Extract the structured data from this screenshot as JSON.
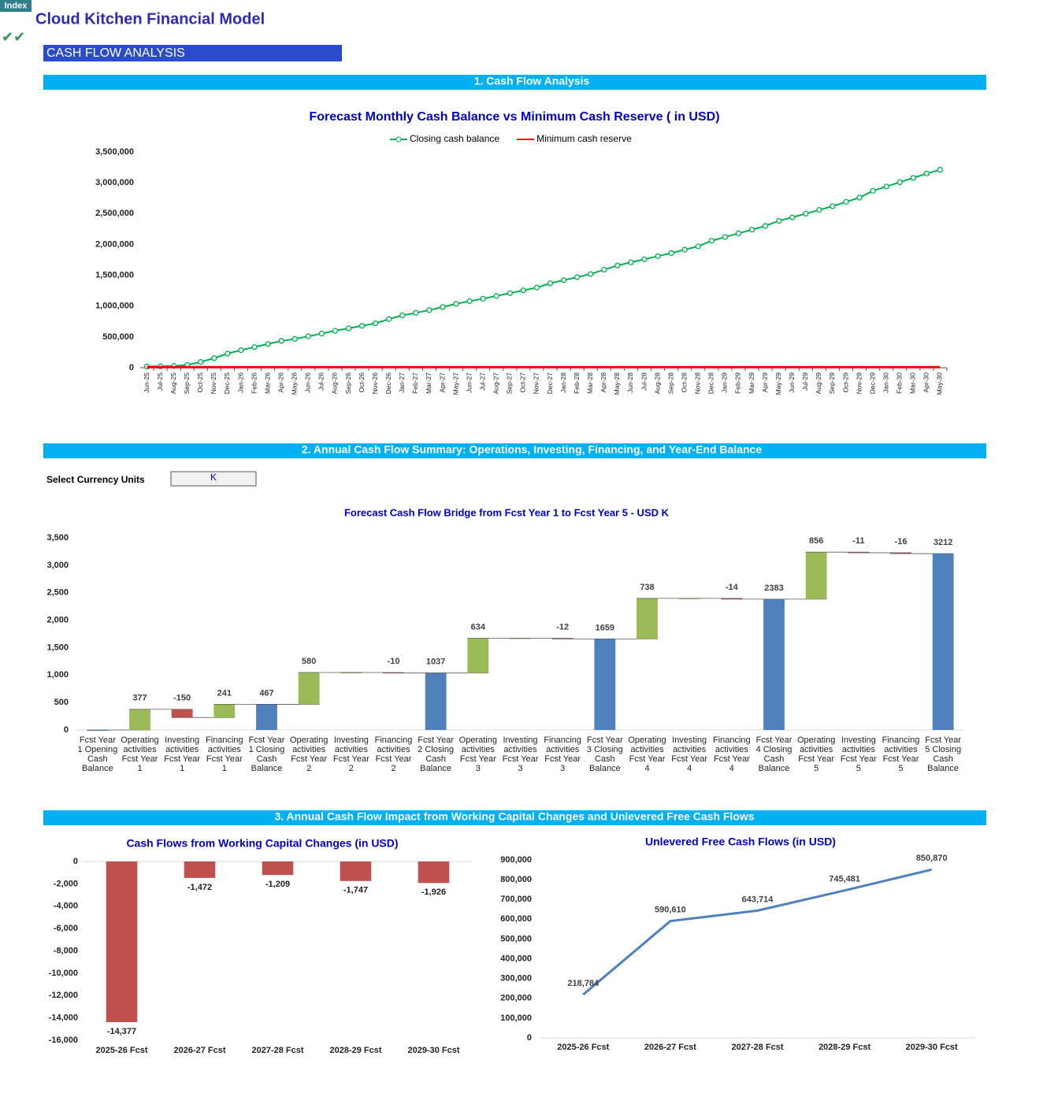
{
  "header": {
    "tag": "Index",
    "title": "Cloud Kitchen Financial Model",
    "section": "CASH FLOW ANALYSIS"
  },
  "section_headings": [
    "1. Cash Flow Analysis",
    "2. Annual Cash Flow Summary: Operations, Investing, Financing, and Year-End Balance",
    "3. Annual Cash Flow Impact from Working Capital Changes and Unlevered Free Cash Flows"
  ],
  "currency_selector": {
    "label": "Select Currency Units",
    "value": "K"
  },
  "chart_data": [
    {
      "type": "line",
      "title": "Forecast Monthly Cash Balance vs Minimum Cash Reserve ( in USD)",
      "categories": [
        "Jun-25",
        "Jul-25",
        "Aug-25",
        "Sep-25",
        "Oct-25",
        "Nov-25",
        "Dec-25",
        "Jan-26",
        "Feb-26",
        "Mar-26",
        "Apr-26",
        "May-26",
        "Jun-26",
        "Jul-26",
        "Aug-26",
        "Sep-26",
        "Oct-26",
        "Nov-26",
        "Dec-26",
        "Jan-27",
        "Feb-27",
        "Mar-27",
        "Apr-27",
        "May-27",
        "Jun-27",
        "Jul-27",
        "Aug-27",
        "Sep-27",
        "Oct-27",
        "Nov-27",
        "Dec-27",
        "Jan-28",
        "Feb-28",
        "Mar-28",
        "Apr-28",
        "May-28",
        "Jun-28",
        "Jul-28",
        "Aug-28",
        "Sep-28",
        "Oct-28",
        "Nov-28",
        "Dec-28",
        "Jan-29",
        "Feb-29",
        "Mar-29",
        "Apr-29",
        "May-29",
        "Jun-29",
        "Jul-29",
        "Aug-29",
        "Sep-29",
        "Oct-29",
        "Nov-29",
        "Dec-29",
        "Jan-30",
        "Feb-30",
        "Mar-30",
        "Apr-30",
        "May-30"
      ],
      "series": [
        {
          "name": "Closing cash balance",
          "color": "#00b050",
          "marker": "circle",
          "values": [
            20000,
            22000,
            28000,
            45000,
            95000,
            155000,
            230000,
            285000,
            335000,
            385000,
            435000,
            467000,
            510000,
            555000,
            600000,
            640000,
            680000,
            720000,
            790000,
            850000,
            890000,
            935000,
            985000,
            1037000,
            1080000,
            1120000,
            1165000,
            1210000,
            1255000,
            1300000,
            1370000,
            1420000,
            1470000,
            1520000,
            1590000,
            1659000,
            1710000,
            1760000,
            1810000,
            1860000,
            1915000,
            1970000,
            2060000,
            2120000,
            2180000,
            2240000,
            2300000,
            2383000,
            2440000,
            2500000,
            2560000,
            2620000,
            2690000,
            2760000,
            2870000,
            2940000,
            3010000,
            3080000,
            3150000,
            3212000
          ]
        },
        {
          "name": "Minimum cash reserve",
          "color": "#ff0000",
          "values": [
            10000,
            10000,
            10000,
            10000,
            10000,
            10000,
            10000,
            10000,
            10000,
            10000,
            10000,
            10000,
            10000,
            10000,
            10000,
            10000,
            10000,
            10000,
            10000,
            10000,
            10000,
            10000,
            10000,
            10000,
            10000,
            10000,
            10000,
            10000,
            10000,
            10000,
            10000,
            10000,
            10000,
            10000,
            10000,
            10000,
            10000,
            10000,
            10000,
            10000,
            10000,
            10000,
            10000,
            10000,
            10000,
            10000,
            10000,
            10000,
            10000,
            10000,
            10000,
            10000,
            10000,
            10000,
            10000,
            10000,
            10000,
            10000,
            10000,
            10000
          ]
        }
      ],
      "ylim": [
        0,
        3500000
      ],
      "yticks": [
        0,
        {
          "value": 500000,
          "label": "500,000"
        },
        {
          "value": 1000000,
          "label": "1,000,000"
        },
        {
          "value": 1500000,
          "label": "1,500,000"
        },
        {
          "value": 2000000,
          "label": "2,000,000"
        },
        {
          "value": 2500000,
          "label": "2,500,000"
        },
        {
          "value": 3000000,
          "label": "3,000,000"
        },
        {
          "value": 3500000,
          "label": "3,500,000"
        }
      ],
      "legend": "top",
      "grid": false
    },
    {
      "type": "waterfall",
      "title": "Forecast Cash Flow Bridge from Fcst Year 1 to Fcst Year 5 - USD K",
      "categories": [
        "Fcst Year 1 Opening Cash Balance",
        "Operating activities Fcst Year 1",
        "Investing activities Fcst Year 1",
        "Financing activities Fcst Year 1",
        "Fcst Year 1 Closing Cash Balance",
        "Operating activities Fcst Year 2",
        "Investing activities Fcst Year 2",
        "Financing activities Fcst Year 2",
        "Fcst Year 2 Closing Cash Balance",
        "Operating activities Fcst Year 3",
        "Investing activities Fcst Year 3",
        "Financing activities Fcst Year 3",
        "Fcst Year 3 Closing Cash Balance",
        "Operating activities Fcst Year 4",
        "Investing activities Fcst Year 4",
        "Financing activities Fcst Year 4",
        "Fcst Year 4 Closing Cash Balance",
        "Operating activities Fcst Year 5",
        "Investing activities Fcst Year 5",
        "Financing activities Fcst Year 5",
        "Fcst Year 5 Closing Cash Balance"
      ],
      "values": [
        0,
        377,
        -150,
        241,
        467,
        580,
        0,
        -10,
        1037,
        634,
        0,
        -12,
        1659,
        738,
        0,
        -14,
        2383,
        856,
        -11,
        -16,
        3212
      ],
      "kinds": [
        "total",
        "delta",
        "delta",
        "delta",
        "total",
        "delta",
        "delta",
        "delta",
        "total",
        "delta",
        "delta",
        "delta",
        "total",
        "delta",
        "delta",
        "delta",
        "total",
        "delta",
        "delta",
        "delta",
        "total"
      ],
      "colors": {
        "total": "#4f81bd",
        "increase": "#9bbb59",
        "decrease": "#c0504d"
      },
      "ylim": [
        0,
        3500
      ],
      "yticks": [
        0,
        500,
        {
          "value": 1000,
          "label": "1,000"
        },
        {
          "value": 1500,
          "label": "1,500"
        },
        {
          "value": 2000,
          "label": "2,000"
        },
        {
          "value": 2500,
          "label": "2,500"
        },
        {
          "value": 3000,
          "label": "3,000"
        },
        {
          "value": 3500,
          "label": "3,500"
        }
      ],
      "grid": false
    },
    {
      "type": "bar",
      "title": "Cash Flows from Working Capital Changes (in USD)",
      "categories": [
        "2025-26 Fcst",
        "2026-27 Fcst",
        "2027-28 Fcst",
        "2028-29 Fcst",
        "2029-30 Fcst"
      ],
      "values": [
        -14377,
        -1472,
        -1209,
        -1747,
        -1926
      ],
      "value_labels": [
        "-14,377",
        "-1,472",
        "-1,209",
        "-1,747",
        "-1,926"
      ],
      "color": "#c0504d",
      "ylim": [
        -16000,
        0
      ],
      "yticks": [
        0,
        {
          "value": -2000,
          "label": "-2,000"
        },
        {
          "value": -4000,
          "label": "-4,000"
        },
        {
          "value": -6000,
          "label": "-6,000"
        },
        {
          "value": -8000,
          "label": "-8,000"
        },
        {
          "value": -10000,
          "label": "-10,000"
        },
        {
          "value": -12000,
          "label": "-12,000"
        },
        {
          "value": -14000,
          "label": "-14,000"
        },
        {
          "value": -16000,
          "label": "-16,000"
        }
      ],
      "grid": false
    },
    {
      "type": "line",
      "title": "Unlevered Free Cash Flows (in USD)",
      "categories": [
        "2025-26 Fcst",
        "2026-27 Fcst",
        "2027-28 Fcst",
        "2028-29 Fcst",
        "2029-30 Fcst"
      ],
      "values": [
        218784,
        590610,
        643714,
        745481,
        850870
      ],
      "value_labels": [
        "218,784",
        "590,610",
        "643,714",
        "745,481",
        "850,870"
      ],
      "color": "#4f81bd",
      "ylim": [
        0,
        900000
      ],
      "yticks": [
        0,
        {
          "value": 100000,
          "label": "100,000"
        },
        {
          "value": 200000,
          "label": "200,000"
        },
        {
          "value": 300000,
          "label": "300,000"
        },
        {
          "value": 400000,
          "label": "400,000"
        },
        {
          "value": 500000,
          "label": "500,000"
        },
        {
          "value": 600000,
          "label": "600,000"
        },
        {
          "value": 700000,
          "label": "700,000"
        },
        {
          "value": 800000,
          "label": "800,000"
        },
        {
          "value": 900000,
          "label": "900,000"
        }
      ],
      "grid": false
    }
  ]
}
